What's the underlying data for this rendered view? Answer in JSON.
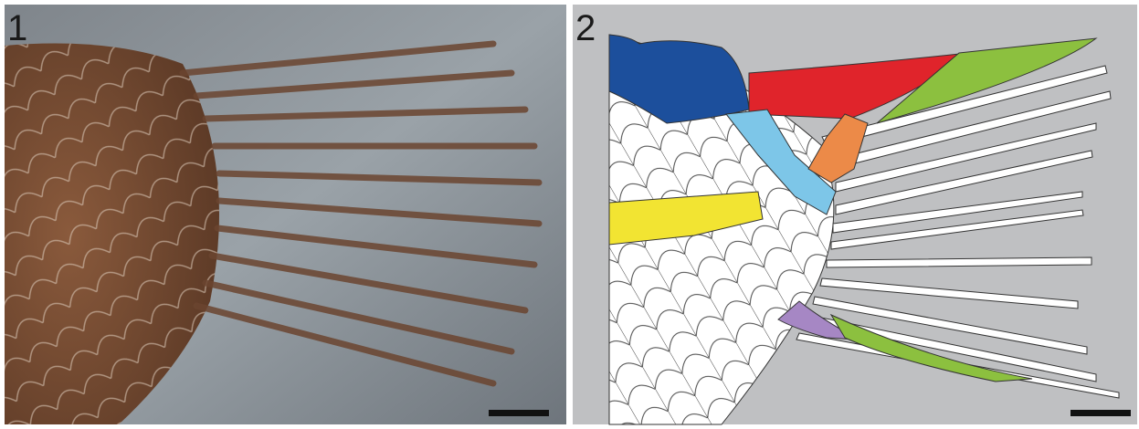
{
  "panels": [
    {
      "label": "1"
    },
    {
      "label": "2"
    }
  ]
}
